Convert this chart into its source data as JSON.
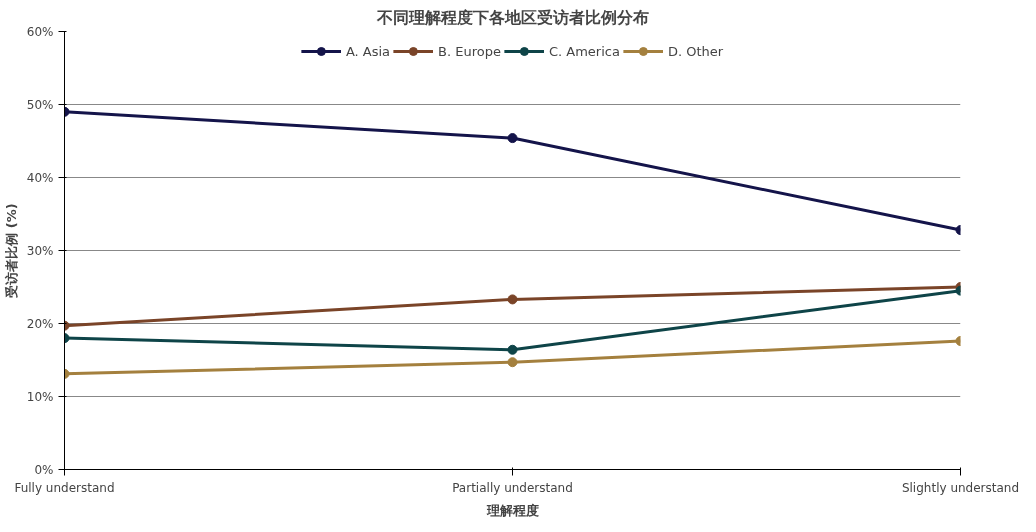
{
  "chart_data": {
    "type": "line",
    "title": "不同理解程度下各地区受访者比例分布",
    "xlabel": "理解程度",
    "ylabel": "受访者比例 (%)",
    "categories": [
      "Fully understand",
      "Partially understand",
      "Slightly understand"
    ],
    "series": [
      {
        "name": "A. Asia",
        "color": "#14144a",
        "values": [
          49.0,
          45.4,
          32.8
        ]
      },
      {
        "name": "B. Europe",
        "color": "#7a4428",
        "values": [
          19.7,
          23.3,
          25.0
        ]
      },
      {
        "name": "C. America",
        "color": "#0e4448",
        "values": [
          18.0,
          16.4,
          24.5
        ]
      },
      {
        "name": "D. Other",
        "color": "#a4803e",
        "values": [
          13.1,
          14.7,
          17.6
        ]
      }
    ],
    "ylim": [
      0,
      60
    ],
    "yticks": [
      {
        "value": 0,
        "label": "0%"
      },
      {
        "value": 10,
        "label": "10%"
      },
      {
        "value": 20,
        "label": "20%"
      },
      {
        "value": 30,
        "label": "30%"
      },
      {
        "value": 40,
        "label": "40%"
      },
      {
        "value": 50,
        "label": "50%"
      },
      {
        "value": 60,
        "label": "60%"
      }
    ],
    "grid": "y",
    "legend": "top",
    "marker": "circle",
    "line_style": "solid"
  }
}
